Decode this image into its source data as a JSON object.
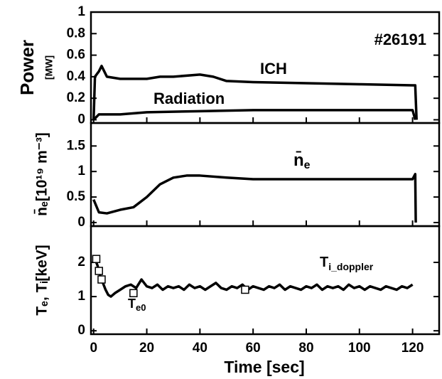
{
  "chart_data": [
    {
      "type": "line",
      "ylabel": "Power",
      "ylabel_unit": "[MW]",
      "annotations": [
        "#26191",
        "ICH",
        "Radiation"
      ],
      "xlim": [
        -1,
        130
      ],
      "ylim": [
        -0.03,
        1
      ],
      "yticks": [
        0,
        0.2,
        0.4,
        0.6,
        0.8,
        1
      ],
      "series": [
        {
          "name": "ICH",
          "color": "#000000",
          "style": "line",
          "x": [
            0,
            0.5,
            2,
            3,
            4,
            5,
            10,
            20,
            25,
            30,
            40,
            45,
            50,
            60,
            80,
            100,
            120,
            121,
            121.5
          ],
          "values": [
            0,
            0.4,
            0.45,
            0.5,
            0.45,
            0.4,
            0.38,
            0.38,
            0.4,
            0.4,
            0.42,
            0.4,
            0.36,
            0.35,
            0.34,
            0.33,
            0.32,
            0.32,
            0
          ]
        },
        {
          "name": "Radiation",
          "color": "#000000",
          "style": "line",
          "x": [
            0,
            2,
            10,
            20,
            40,
            60,
            80,
            100,
            120,
            121
          ],
          "values": [
            0,
            0.05,
            0.05,
            0.07,
            0.08,
            0.09,
            0.09,
            0.09,
            0.09,
            0
          ]
        }
      ]
    },
    {
      "type": "line",
      "ylabel": "n̄ₑ[10¹⁹ m⁻³]",
      "annotations": [
        {
          "main": "n̄",
          "sub": "e"
        }
      ],
      "xlim": [
        -1,
        130
      ],
      "ylim": [
        -0.07,
        1.95
      ],
      "yticks": [
        0,
        0.5,
        1,
        1.5
      ],
      "series": [
        {
          "name": "ne",
          "color": "#000000",
          "style": "line",
          "x": [
            0,
            2,
            5,
            10,
            15,
            20,
            25,
            30,
            35,
            40,
            50,
            60,
            80,
            100,
            120,
            121,
            121.2
          ],
          "values": [
            0.45,
            0.2,
            0.18,
            0.25,
            0.3,
            0.5,
            0.75,
            0.88,
            0.92,
            0.92,
            0.88,
            0.85,
            0.85,
            0.85,
            0.85,
            0.95,
            0
          ]
        }
      ]
    },
    {
      "type": "line",
      "ylabel": "Tₑ, Tᵢ[keV]",
      "xlabel": "Time [sec]",
      "annotations": [
        {
          "main": "T",
          "sub": "i_doppler"
        },
        {
          "main": "T",
          "sub": "e0"
        }
      ],
      "xlim": [
        -1,
        130
      ],
      "ylim": [
        -0.1,
        3.06
      ],
      "xticks": [
        0,
        20,
        40,
        60,
        80,
        100,
        120
      ],
      "yticks": [
        0,
        1,
        2
      ],
      "series": [
        {
          "name": "Ti_doppler",
          "color": "#000000",
          "style": "line",
          "x": [
            0.5,
            1.5,
            2.5,
            3.5,
            4.5,
            5.5,
            6.5,
            8,
            10,
            12,
            14,
            16,
            18,
            20,
            22,
            24,
            26,
            28,
            30,
            32,
            34,
            36,
            38,
            40,
            42,
            44,
            46,
            48,
            50,
            52,
            54,
            56,
            58,
            60,
            62,
            64,
            66,
            68,
            70,
            72,
            74,
            76,
            78,
            80,
            82,
            84,
            86,
            88,
            90,
            92,
            94,
            96,
            98,
            100,
            102,
            104,
            106,
            108,
            110,
            112,
            114,
            116,
            118,
            120
          ],
          "values": [
            2.1,
            1.9,
            1.6,
            1.4,
            1.2,
            1.05,
            1.0,
            1.1,
            1.2,
            1.3,
            1.35,
            1.25,
            1.5,
            1.3,
            1.25,
            1.35,
            1.2,
            1.3,
            1.25,
            1.3,
            1.2,
            1.35,
            1.25,
            1.3,
            1.2,
            1.3,
            1.4,
            1.25,
            1.2,
            1.3,
            1.25,
            1.35,
            1.2,
            1.3,
            1.25,
            1.2,
            1.3,
            1.25,
            1.35,
            1.2,
            1.3,
            1.25,
            1.2,
            1.3,
            1.25,
            1.35,
            1.2,
            1.3,
            1.25,
            1.3,
            1.2,
            1.35,
            1.25,
            1.3,
            1.2,
            1.3,
            1.25,
            1.2,
            1.3,
            1.25,
            1.2,
            1.3,
            1.25,
            1.35
          ]
        },
        {
          "name": "Te0",
          "color": "#000000",
          "style": "markers",
          "x": [
            1,
            2,
            3,
            15,
            57
          ],
          "values": [
            2.1,
            1.75,
            1.5,
            1.1,
            1.2
          ]
        }
      ]
    }
  ]
}
